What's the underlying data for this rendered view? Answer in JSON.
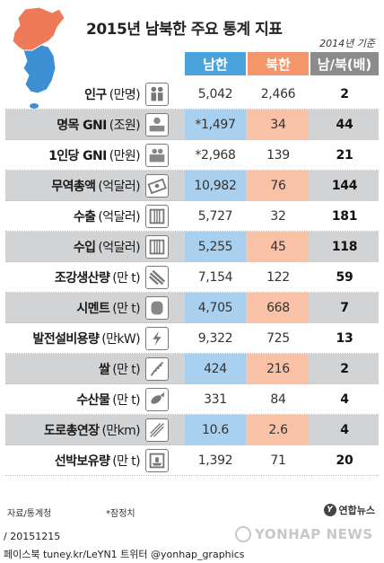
{
  "header": {
    "title": "2015년 남북한 주요 통계 지표",
    "basis": "2014년 기준",
    "col_south": "남한",
    "col_north": "북한",
    "col_ratio": "남/북(배)"
  },
  "rows": [
    {
      "name": "인구",
      "unit": "(만명)",
      "south": "5,042",
      "north": "2,466",
      "ratio": "2",
      "icon": "people-icon"
    },
    {
      "name": "명목 GNI",
      "unit": "(조원)",
      "south": "*1,497",
      "north": "34",
      "ratio": "44",
      "icon": "money-stack-icon"
    },
    {
      "name": "1인당 GNI",
      "unit": "(만원)",
      "south": "*2,968",
      "north": "139",
      "ratio": "21",
      "icon": "wallet-icon"
    },
    {
      "name": "무역총액",
      "unit": "(억달러)",
      "south": "10,982",
      "north": "76",
      "ratio": "144",
      "icon": "banknote-icon"
    },
    {
      "name": "수출",
      "unit": "(억달러)",
      "south": "5,727",
      "north": "32",
      "ratio": "181",
      "icon": "container-icon"
    },
    {
      "name": "수입",
      "unit": "(억달러)",
      "south": "5,255",
      "north": "45",
      "ratio": "118",
      "icon": "container-icon"
    },
    {
      "name": "조강생산량",
      "unit": "(만 t)",
      "south": "7,154",
      "north": "122",
      "ratio": "59",
      "icon": "steel-beam-icon"
    },
    {
      "name": "시멘트",
      "unit": "(만 t)",
      "south": "4,705",
      "north": "668",
      "ratio": "7",
      "icon": "cement-bag-icon"
    },
    {
      "name": "발전설비용량",
      "unit": "(만kW)",
      "south": "9,322",
      "north": "725",
      "ratio": "13",
      "icon": "lightning-icon"
    },
    {
      "name": "쌀",
      "unit": "(만 t)",
      "south": "424",
      "north": "216",
      "ratio": "2",
      "icon": "rice-icon"
    },
    {
      "name": "수산물",
      "unit": "(만 t)",
      "south": "331",
      "north": "84",
      "ratio": "4",
      "icon": "fish-icon"
    },
    {
      "name": "도로총연장",
      "unit": "(만km)",
      "south": "10.6",
      "north": "2.6",
      "ratio": "4",
      "icon": "road-icon"
    },
    {
      "name": "선박보유량",
      "unit": "(만 t)",
      "south": "1,392",
      "north": "71",
      "ratio": "20",
      "icon": "ship-icon"
    }
  ],
  "footer": {
    "source": "자료/통계청",
    "note": "*잠정치",
    "agency": "연합뉴스",
    "date": "/ 20151215",
    "sns": "페이스북 tuney.kr/LeYN1 트위터 @yonhap_graphics",
    "watermark": "YONHAP NEWS"
  },
  "colors": {
    "south": "#4aa3dc",
    "north": "#f4956a",
    "ratio": "#8c8c8c",
    "south_light": "#a9d1ef",
    "north_light": "#f9c1a6",
    "shade": "#d2d3d5"
  }
}
